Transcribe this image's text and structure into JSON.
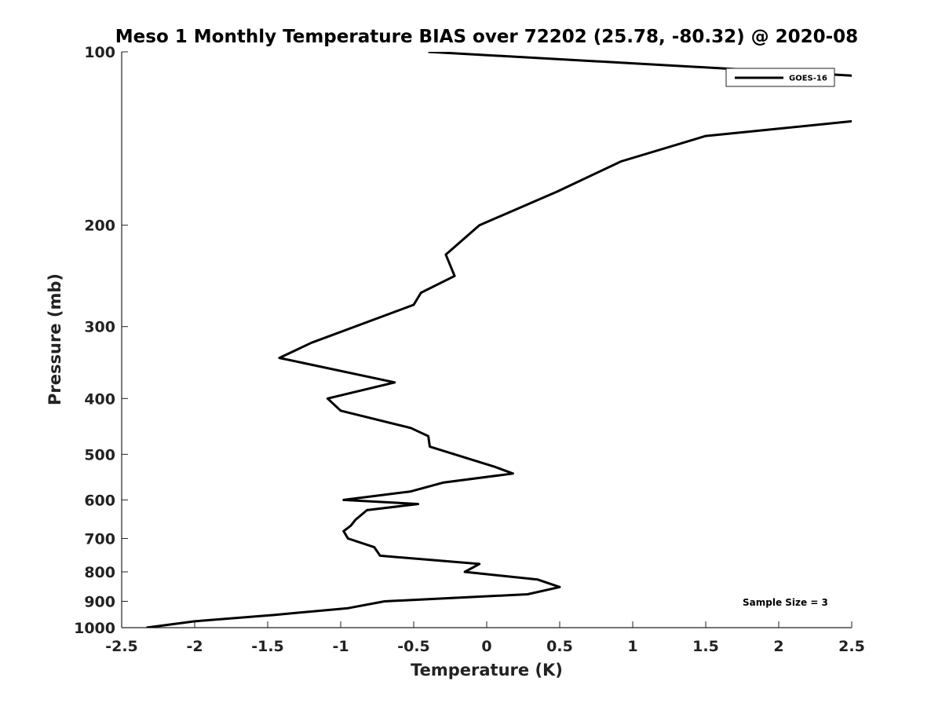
{
  "chart_data": {
    "type": "line",
    "title": "Meso 1 Monthly Temperature BIAS over 72202 (25.78, -80.32) @ 2020-08",
    "xlabel": "Temperature (K)",
    "ylabel": "Pressure (mb)",
    "xlim": [
      -2.5,
      2.5
    ],
    "ylim": [
      1000,
      100
    ],
    "y_scale": "log",
    "y_reversed": true,
    "grid": false,
    "x_ticks": [
      -2.5,
      -2,
      -1.5,
      -1,
      -0.5,
      0,
      0.5,
      1,
      1.5,
      2,
      2.5
    ],
    "x_tick_labels": [
      "-2.5",
      "-2",
      "-1.5",
      "-1",
      "-0.5",
      "0",
      "0.5",
      "1",
      "1.5",
      "2",
      "2.5"
    ],
    "y_ticks": [
      100,
      200,
      300,
      400,
      500,
      600,
      700,
      800,
      900,
      1000
    ],
    "y_tick_labels": [
      "100",
      "200",
      "300",
      "400",
      "500",
      "600",
      "700",
      "800",
      "900",
      "1000"
    ],
    "legend": {
      "position": "top-right",
      "entries": [
        "GOES-16"
      ]
    },
    "annotation": "Sample Size = 3",
    "series": [
      {
        "name": "GOES-16",
        "color": "#000000",
        "x": [
          -2.33,
          -2.0,
          -1.45,
          -0.95,
          -0.7,
          0.28,
          0.5,
          0.35,
          -0.15,
          -0.05,
          -0.73,
          -0.77,
          -0.95,
          -0.98,
          -0.93,
          -0.9,
          -0.82,
          -0.47,
          -0.98,
          -0.52,
          -0.3,
          0.18,
          0.05,
          -0.39,
          -0.4,
          -0.52,
          -1.0,
          -1.09,
          -0.63,
          -1.42,
          -1.2,
          -0.5,
          -0.45,
          -0.22,
          -0.28,
          -0.05,
          0.48,
          0.92,
          1.5,
          2.5,
          3.05,
          2.5,
          -0.4
        ],
        "y": [
          1000,
          975,
          950,
          925,
          900,
          875,
          850,
          825,
          800,
          775,
          750,
          725,
          700,
          680,
          665,
          650,
          625,
          610,
          600,
          580,
          560,
          540,
          525,
          485,
          465,
          450,
          420,
          400,
          375,
          340,
          320,
          275,
          262,
          245,
          225,
          200,
          175,
          155,
          140,
          132,
          118,
          110,
          100
        ]
      }
    ]
  }
}
